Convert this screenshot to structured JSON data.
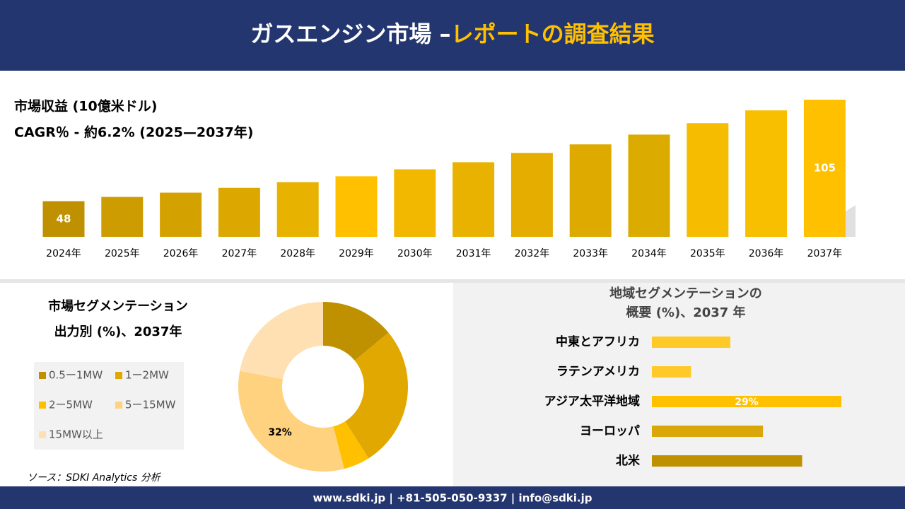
{
  "header": {
    "title": [
      "ガスエンジン市場 –",
      "レポートの調査結果"
    ]
  },
  "chart_data": [
    {
      "type": "bar",
      "title": "市場収益 (10億米ドル)",
      "subtitle": "CAGR％ - 約6.2% (2025—2037年)",
      "categories": [
        "2024年",
        "2025年",
        "2026年",
        "2027年",
        "2028年",
        "2029年",
        "2030年",
        "2031年",
        "2032年",
        "2033年",
        "2034年",
        "2035年",
        "2036年",
        "2037年"
      ],
      "values": [
        48,
        50.4,
        52.8,
        55.5,
        58.7,
        62,
        65.9,
        69.9,
        75.1,
        79.9,
        85.4,
        91.8,
        99,
        105
      ],
      "colors": [
        "#bf9000",
        "#cc9c00",
        "#d4a200",
        "#dca800",
        "#e8b200",
        "#ffc000",
        "#f2b800",
        "#eab200",
        "#e4ad00",
        "#deaa00",
        "#dbab00",
        "#f5bc00",
        "#f8be00",
        "#ffc000"
      ],
      "label_indices": [
        0,
        13
      ],
      "ylim": [
        28,
        105
      ]
    },
    {
      "type": "donut",
      "title": "市場セグメンテーション",
      "subtitle": "出力別 (%)、2037年",
      "categories": [
        "0.5ー1MW",
        "1ー2MW",
        "2ー5MW",
        "5ー15MW",
        "15MW以上"
      ],
      "values": [
        14,
        27,
        5,
        32,
        22
      ],
      "value_labels": [
        null,
        null,
        null,
        "32%",
        null
      ],
      "colors": [
        "#bf9000",
        "#e0a800",
        "#ffc000",
        "#ffd27f",
        "#ffe0b3"
      ]
    },
    {
      "type": "barh",
      "title": "地域セグメンテーションの",
      "subtitle": "概要 (%)、2037 年",
      "categories": [
        "中東とアフリカ",
        "ラテンアメリカ",
        "アジア太平洋地域",
        "ヨーロッパ",
        "北米"
      ],
      "values": [
        12,
        6,
        29,
        17,
        23
      ],
      "value_labels": [
        null,
        null,
        "29%",
        null,
        null
      ],
      "colors": [
        "#ffc929",
        "#ffc929",
        "#ffc000",
        "#d9a70a",
        "#bf9000"
      ],
      "xlim": [
        0,
        29
      ]
    }
  ],
  "source": "ソース：SDKI Analytics 分析",
  "footer": "www.sdki.jp | +81-505-050-9337 | info@sdki.jp"
}
